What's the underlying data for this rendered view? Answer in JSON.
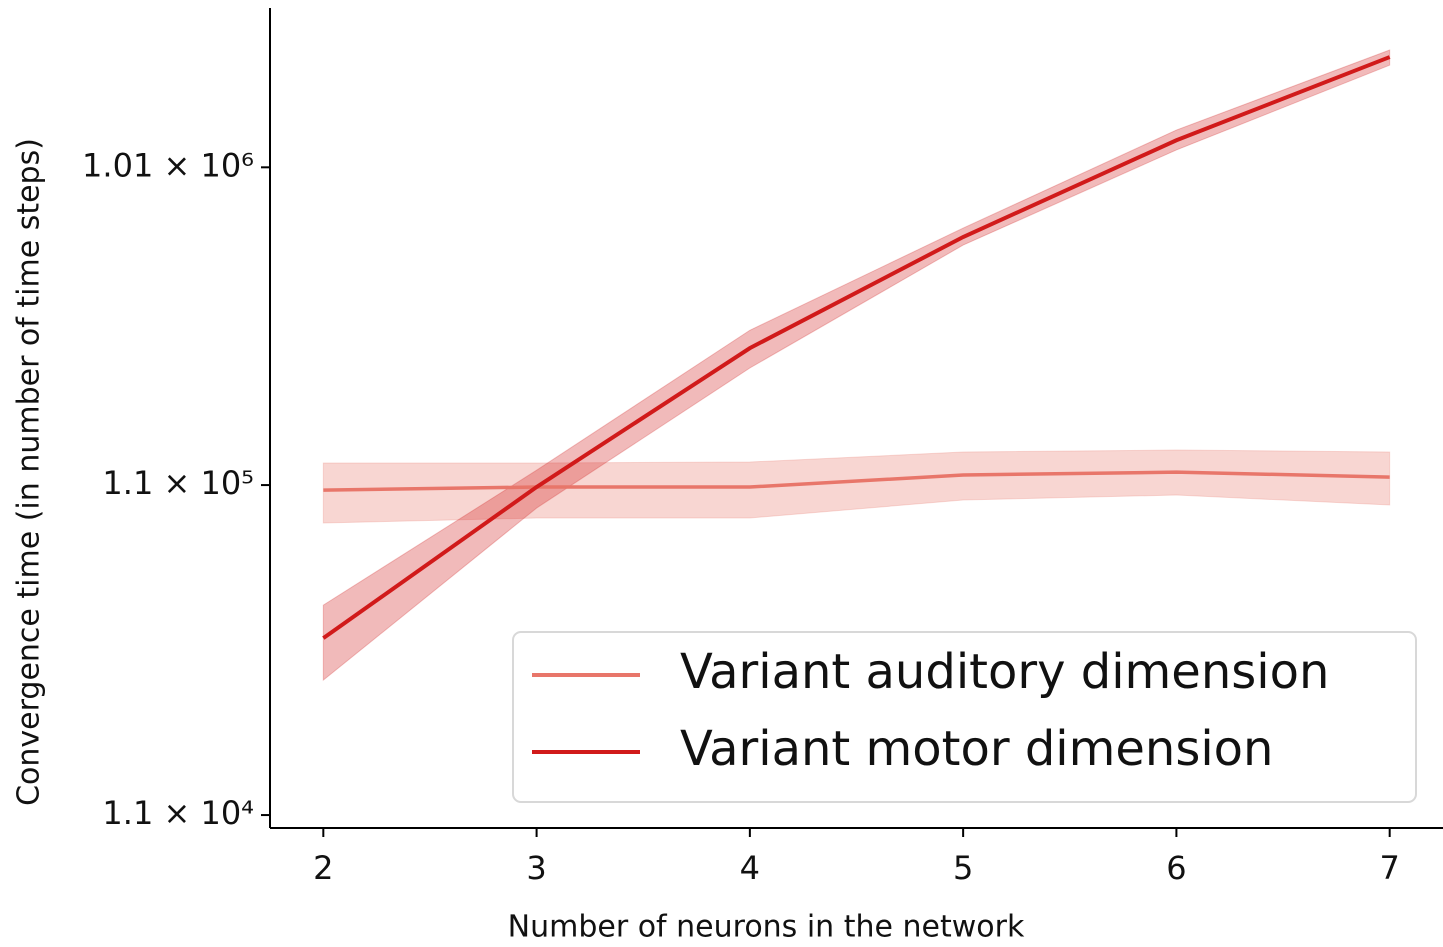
{
  "chart_data": {
    "type": "line",
    "xlabel": "Number of neurons in the network",
    "ylabel": "Convergence time (in number of time steps)",
    "x": [
      2,
      3,
      4,
      5,
      6,
      7
    ],
    "xlim": [
      1.75,
      7.25
    ],
    "xticks": [
      2,
      3,
      4,
      5,
      6,
      7
    ],
    "ylim": [
      10050,
      3070000
    ],
    "yscale": "log",
    "yticks": [
      {
        "value": 11000,
        "label": "1.1 × 10⁴"
      },
      {
        "value": 110000,
        "label": "1.1 × 10⁵"
      },
      {
        "value": 1010000,
        "label": "1.01 × 10⁶"
      }
    ],
    "legend": "lower right",
    "series": [
      {
        "name": "Variant auditory dimension",
        "color": "#e8766a",
        "values": [
          106200,
          108500,
          108500,
          118000,
          120400,
          116300
        ],
        "lower": [
          84400,
          87400,
          87400,
          99100,
          102600,
          95700
        ],
        "upper": [
          128300,
          128300,
          129200,
          138500,
          140500,
          138500
        ]
      },
      {
        "name": "Variant motor dimension",
        "color": "#d11a1a",
        "values": [
          37800,
          108500,
          286000,
          621000,
          1220000,
          2180000
        ],
        "lower": [
          28200,
          93700,
          249000,
          587000,
          1140000,
          2060000
        ],
        "upper": [
          47600,
          122000,
          324000,
          661000,
          1310000,
          2290000
        ]
      }
    ]
  }
}
